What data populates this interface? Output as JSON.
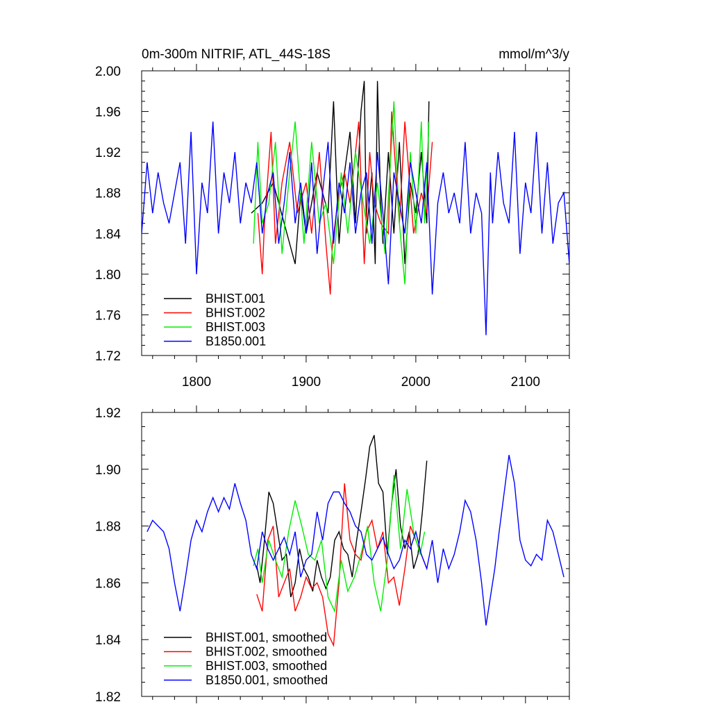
{
  "header": {
    "title": "0m-300m NITRIF, ATL_44S-18S",
    "units": "mmol/m^3/y"
  },
  "colors": {
    "BHIST.001": "#000000",
    "BHIST.002": "#ff0000",
    "BHIST.003": "#00ee00",
    "B1850.001": "#0000ff"
  },
  "chart_data": [
    {
      "type": "line",
      "title": "0m-300m NITRIF, ATL_44S-18S",
      "units": "mmol/m^3/y",
      "xlim": [
        1750,
        2140
      ],
      "ylim": [
        1.72,
        2.0
      ],
      "x_ticks": [
        1800,
        1900,
        2000,
        2100
      ],
      "x_tick_labels": [
        "1800",
        "1900",
        "2000",
        "2100"
      ],
      "y_ticks": [
        1.72,
        1.76,
        1.8,
        1.84,
        1.88,
        1.92,
        1.96,
        2.0
      ],
      "y_tick_labels": [
        "1.72",
        "1.76",
        "1.80",
        "1.84",
        "1.88",
        "1.92",
        "1.96",
        "2.00"
      ],
      "legend_position": "bottom-left",
      "series": [
        {
          "name": "BHIST.001",
          "color": "#000000",
          "x_start": 1850,
          "x_end": 2012,
          "x": [
            1850,
            1860,
            1870,
            1880,
            1885,
            1890,
            1895,
            1900,
            1910,
            1920,
            1925,
            1930,
            1935,
            1940,
            1945,
            1950,
            1953,
            1955,
            1960,
            1963,
            1965,
            1968,
            1970,
            1975,
            1980,
            1985,
            1990,
            1995,
            2000,
            2005,
            2010,
            2012
          ],
          "y": [
            1.86,
            1.87,
            1.89,
            1.85,
            1.83,
            1.81,
            1.88,
            1.84,
            1.9,
            1.86,
            1.97,
            1.83,
            1.9,
            1.94,
            1.85,
            1.96,
            1.99,
            1.84,
            1.9,
            1.81,
            1.99,
            1.87,
            1.83,
            1.92,
            1.84,
            1.93,
            1.81,
            1.89,
            1.86,
            1.92,
            1.85,
            1.97
          ]
        },
        {
          "name": "BHIST.002",
          "color": "#ff0000",
          "x_start": 1856,
          "x_end": 2015,
          "x": [
            1856,
            1860,
            1862,
            1868,
            1872,
            1878,
            1885,
            1892,
            1900,
            1905,
            1912,
            1918,
            1922,
            1924,
            1930,
            1935,
            1940,
            1948,
            1953,
            1958,
            1962,
            1968,
            1975,
            1978,
            1985,
            1990,
            1998,
            2005,
            2010,
            2015
          ],
          "y": [
            1.86,
            1.8,
            1.85,
            1.94,
            1.83,
            1.89,
            1.93,
            1.86,
            1.89,
            1.84,
            1.92,
            1.83,
            1.78,
            1.83,
            1.88,
            1.9,
            1.87,
            1.95,
            1.81,
            1.92,
            1.87,
            1.85,
            1.84,
            1.96,
            1.85,
            1.95,
            1.84,
            1.88,
            1.86,
            1.93
          ]
        },
        {
          "name": "BHIST.003",
          "color": "#00ee00",
          "x_start": 1852,
          "x_end": 2012,
          "x": [
            1852,
            1856,
            1860,
            1866,
            1872,
            1878,
            1885,
            1890,
            1898,
            1905,
            1912,
            1918,
            1925,
            1932,
            1938,
            1945,
            1952,
            1958,
            1965,
            1972,
            1978,
            1980,
            1985,
            1990,
            1995,
            2000,
            2005,
            2008,
            2012
          ],
          "y": [
            1.83,
            1.93,
            1.85,
            1.87,
            1.93,
            1.82,
            1.9,
            1.95,
            1.83,
            1.93,
            1.85,
            1.87,
            1.81,
            1.9,
            1.84,
            1.92,
            1.87,
            1.83,
            1.89,
            1.82,
            1.93,
            1.97,
            1.85,
            1.79,
            1.92,
            1.84,
            1.95,
            1.85,
            1.95
          ]
        },
        {
          "name": "B1850.001",
          "color": "#0000ff",
          "x_start": 1750,
          "x_end": 2140,
          "x": [
            1750,
            1755,
            1760,
            1765,
            1770,
            1775,
            1780,
            1785,
            1790,
            1795,
            1800,
            1805,
            1810,
            1815,
            1820,
            1825,
            1830,
            1835,
            1840,
            1845,
            1850,
            1855,
            1860,
            1865,
            1870,
            1875,
            1880,
            1885,
            1890,
            1895,
            1900,
            1905,
            1910,
            1915,
            1920,
            1925,
            1930,
            1935,
            1940,
            1945,
            1950,
            1955,
            1960,
            1965,
            1970,
            1975,
            1980,
            1985,
            1990,
            1995,
            2000,
            2005,
            2010,
            2015,
            2020,
            2025,
            2030,
            2035,
            2040,
            2045,
            2050,
            2055,
            2060,
            2064,
            2068,
            2070,
            2075,
            2080,
            2085,
            2090,
            2095,
            2100,
            2105,
            2110,
            2115,
            2120,
            2125,
            2130,
            2135,
            2140
          ],
          "y": [
            1.84,
            1.91,
            1.86,
            1.9,
            1.87,
            1.85,
            1.88,
            1.91,
            1.83,
            1.94,
            1.8,
            1.89,
            1.86,
            1.95,
            1.84,
            1.9,
            1.87,
            1.92,
            1.85,
            1.89,
            1.87,
            1.91,
            1.84,
            1.88,
            1.9,
            1.83,
            1.87,
            1.92,
            1.85,
            1.89,
            1.84,
            1.91,
            1.82,
            1.88,
            1.93,
            1.83,
            1.89,
            1.86,
            1.91,
            1.84,
            1.88,
            1.9,
            1.83,
            1.92,
            1.86,
            1.79,
            1.9,
            1.87,
            1.84,
            1.91,
            1.88,
            1.85,
            1.91,
            1.78,
            1.87,
            1.9,
            1.86,
            1.88,
            1.85,
            1.93,
            1.84,
            1.88,
            1.86,
            1.74,
            1.9,
            1.85,
            1.92,
            1.87,
            1.85,
            1.94,
            1.82,
            1.89,
            1.86,
            1.94,
            1.84,
            1.91,
            1.83,
            1.87,
            1.88,
            1.81
          ]
        }
      ],
      "legend": [
        "BHIST.001",
        "BHIST.002",
        "BHIST.003",
        "B1850.001"
      ]
    },
    {
      "type": "line",
      "xlim": [
        1750,
        2140
      ],
      "ylim": [
        1.82,
        1.92
      ],
      "x_ticks": [
        1800,
        1900,
        2000,
        2100
      ],
      "y_ticks": [
        1.82,
        1.84,
        1.86,
        1.88,
        1.9,
        1.92
      ],
      "y_tick_labels": [
        "1.82",
        "1.84",
        "1.86",
        "1.88",
        "1.90",
        "1.92"
      ],
      "legend_position": "bottom-left",
      "series": [
        {
          "name": "BHIST.001, smoothed",
          "color": "#000000",
          "x": [
            1855,
            1858,
            1862,
            1866,
            1870,
            1874,
            1878,
            1882,
            1886,
            1890,
            1894,
            1898,
            1902,
            1906,
            1910,
            1914,
            1918,
            1922,
            1926,
            1930,
            1934,
            1938,
            1942,
            1946,
            1950,
            1954,
            1958,
            1962,
            1966,
            1970,
            1974,
            1978,
            1982,
            1986,
            1990,
            1994,
            1998,
            2002,
            2006,
            2010
          ],
          "y": [
            1.866,
            1.86,
            1.875,
            1.892,
            1.888,
            1.878,
            1.868,
            1.87,
            1.855,
            1.86,
            1.872,
            1.865,
            1.862,
            1.857,
            1.868,
            1.862,
            1.858,
            1.862,
            1.875,
            1.878,
            1.872,
            1.87,
            1.862,
            1.875,
            1.885,
            1.896,
            1.908,
            1.912,
            1.895,
            1.892,
            1.87,
            1.888,
            1.9,
            1.88,
            1.872,
            1.878,
            1.865,
            1.87,
            1.885,
            1.903
          ]
        },
        {
          "name": "BHIST.002, smoothed",
          "color": "#ff0000",
          "x": [
            1855,
            1860,
            1865,
            1870,
            1875,
            1880,
            1885,
            1890,
            1895,
            1900,
            1905,
            1910,
            1915,
            1920,
            1925,
            1930,
            1935,
            1940,
            1945,
            1950,
            1955,
            1960,
            1965,
            1970,
            1975,
            1980,
            1985,
            1990,
            1995,
            2000,
            2005,
            2010
          ],
          "y": [
            1.856,
            1.85,
            1.875,
            1.88,
            1.855,
            1.86,
            1.865,
            1.85,
            1.855,
            1.862,
            1.858,
            1.86,
            1.855,
            1.842,
            1.838,
            1.86,
            1.895,
            1.875,
            1.87,
            1.868,
            1.878,
            1.882,
            1.872,
            1.878,
            1.86,
            1.862,
            1.852,
            1.865,
            1.88,
            1.875,
            1.87,
            1.865
          ]
        },
        {
          "name": "BHIST.003, smoothed",
          "color": "#00ee00",
          "x": [
            1852,
            1856,
            1860,
            1866,
            1872,
            1878,
            1884,
            1890,
            1896,
            1902,
            1908,
            1914,
            1920,
            1926,
            1932,
            1938,
            1944,
            1950,
            1956,
            1962,
            1968,
            1974,
            1980,
            1986,
            1992,
            1998,
            2004,
            2008
          ],
          "y": [
            1.866,
            1.872,
            1.86,
            1.875,
            1.868,
            1.862,
            1.878,
            1.889,
            1.88,
            1.87,
            1.868,
            1.875,
            1.855,
            1.85,
            1.868,
            1.857,
            1.862,
            1.87,
            1.88,
            1.86,
            1.85,
            1.868,
            1.898,
            1.872,
            1.893,
            1.878,
            1.87,
            1.878
          ]
        },
        {
          "name": "B1850.001, smoothed",
          "color": "#0000ff",
          "x": [
            1755,
            1760,
            1765,
            1770,
            1775,
            1780,
            1785,
            1790,
            1795,
            1800,
            1805,
            1810,
            1815,
            1820,
            1825,
            1830,
            1835,
            1840,
            1845,
            1850,
            1855,
            1860,
            1865,
            1870,
            1875,
            1880,
            1885,
            1890,
            1895,
            1900,
            1905,
            1910,
            1915,
            1920,
            1925,
            1930,
            1935,
            1940,
            1945,
            1950,
            1955,
            1960,
            1965,
            1970,
            1975,
            1980,
            1985,
            1990,
            1995,
            2000,
            2005,
            2010,
            2015,
            2020,
            2025,
            2030,
            2035,
            2040,
            2045,
            2050,
            2055,
            2060,
            2064,
            2068,
            2072,
            2076,
            2080,
            2085,
            2090,
            2095,
            2100,
            2105,
            2110,
            2115,
            2120,
            2125,
            2130,
            2135
          ],
          "y": [
            1.878,
            1.882,
            1.88,
            1.878,
            1.872,
            1.86,
            1.85,
            1.862,
            1.875,
            1.882,
            1.878,
            1.885,
            1.89,
            1.885,
            1.89,
            1.886,
            1.895,
            1.888,
            1.882,
            1.87,
            1.865,
            1.878,
            1.872,
            1.868,
            1.872,
            1.876,
            1.87,
            1.878,
            1.862,
            1.868,
            1.87,
            1.885,
            1.875,
            1.888,
            1.892,
            1.892,
            1.888,
            1.885,
            1.88,
            1.878,
            1.87,
            1.868,
            1.872,
            1.876,
            1.87,
            1.865,
            1.868,
            1.875,
            1.872,
            1.878,
            1.87,
            1.865,
            1.875,
            1.86,
            1.872,
            1.865,
            1.87,
            1.878,
            1.889,
            1.885,
            1.875,
            1.86,
            1.845,
            1.855,
            1.865,
            1.878,
            1.89,
            1.905,
            1.895,
            1.875,
            1.868,
            1.866,
            1.87,
            1.868,
            1.882,
            1.878,
            1.87,
            1.862
          ]
        }
      ],
      "legend": [
        "BHIST.001, smoothed",
        "BHIST.002, smoothed",
        "BHIST.003, smoothed",
        "B1850.001, smoothed"
      ]
    }
  ]
}
